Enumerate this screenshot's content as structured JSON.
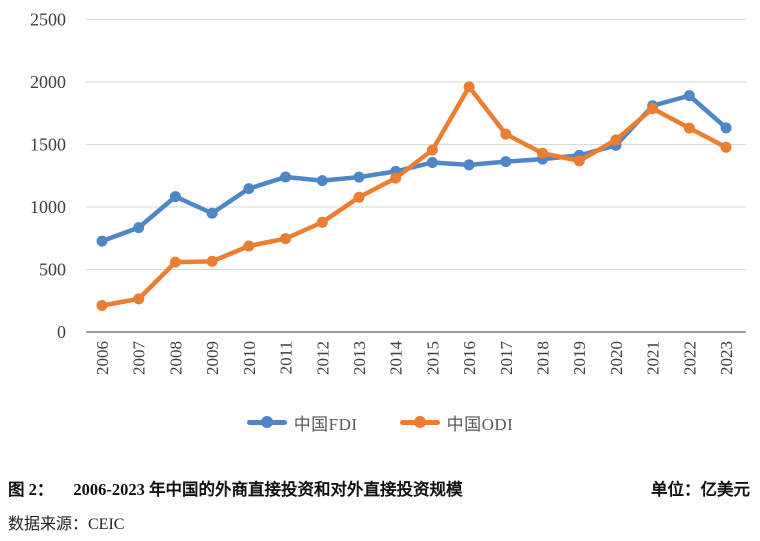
{
  "chart_data": {
    "type": "line",
    "title": "",
    "xlabel": "",
    "ylabel": "",
    "unit_label": "单位：亿美元",
    "categories": [
      "2006",
      "2007",
      "2008",
      "2009",
      "2010",
      "2011",
      "2012",
      "2013",
      "2014",
      "2015",
      "2016",
      "2017",
      "2018",
      "2019",
      "2020",
      "2021",
      "2022",
      "2023"
    ],
    "series": [
      {
        "name": "中国FDI",
        "color": "#4E86C8",
        "values": [
          727,
          835,
          1083,
          950,
          1147,
          1240,
          1211,
          1239,
          1285,
          1356,
          1337,
          1363,
          1383,
          1413,
          1493,
          1810,
          1891,
          1633
        ]
      },
      {
        "name": "中国ODI",
        "color": "#ED7D31",
        "values": [
          212,
          265,
          559,
          565,
          688,
          747,
          878,
          1078,
          1231,
          1456,
          1961,
          1583,
          1430,
          1369,
          1537,
          1788,
          1631,
          1478
        ]
      }
    ],
    "ylim": [
      0,
      2500
    ],
    "yticks": [
      0,
      500,
      1000,
      1500,
      2000,
      2500
    ],
    "grid": "horizontal",
    "legend_position": "bottom",
    "x_tick_rotation": -90
  },
  "colors": {
    "background": "#FFFFFF",
    "gridline": "#D9D9D9",
    "axis_line": "#666666",
    "tick_text": "#404040",
    "legend_text": "#595959",
    "fdi_blue": "#4E86C8",
    "odi_orange": "#ED7D31"
  },
  "caption": {
    "figure_label": "图 2：",
    "title": "2006-2023 年中国的外商直接投资和对外直接投资规模",
    "unit": "单位：亿美元",
    "source": "数据来源：CEIC"
  }
}
